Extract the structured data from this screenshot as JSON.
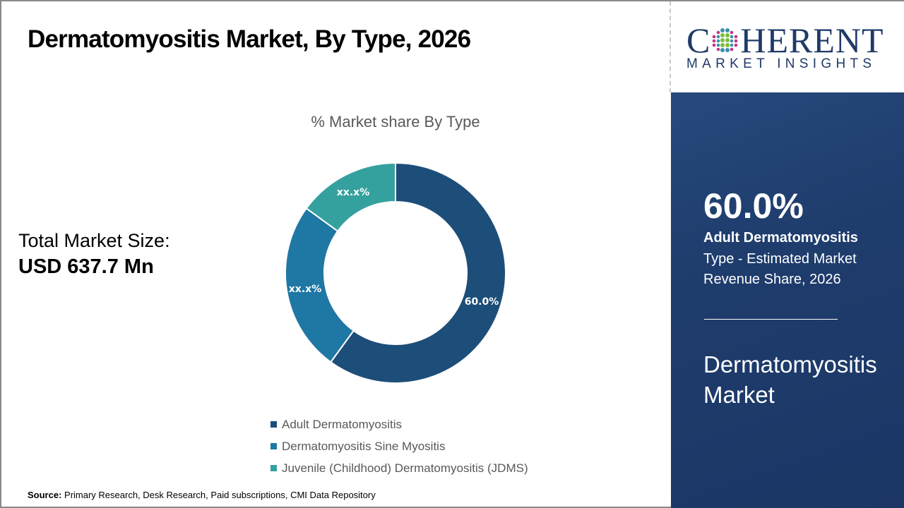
{
  "header": {
    "title": "Dermatomyositis Market, By Type, 2026"
  },
  "logo": {
    "line1_left": "C",
    "line1_right": "HERENT",
    "line2": "MARKET INSIGHTS",
    "brand_color": "#1f3a68"
  },
  "total_market": {
    "label": "Total Market Size:",
    "value": "USD 637.7 Mn"
  },
  "chart_data": {
    "type": "pie",
    "subtype": "donut",
    "title": "% Market share By Type",
    "categories": [
      "Adult Dermatomyositis",
      "Dermatomyositis Sine Myositis",
      "Juvenile (Childhood) Dermatomyositis (JDMS)"
    ],
    "values": [
      60.0,
      25.0,
      15.0
    ],
    "data_labels": [
      "60.0%",
      "xx.x%",
      "xx.x%"
    ],
    "colors": [
      "#1d4e79",
      "#1f77a4",
      "#35a19f"
    ],
    "legend_position": "bottom",
    "start_angle": "top, clockwise",
    "note": "Only Adult Dermatomyositis share (60.0%) is labeled; other shares shown as xx.x% and estimated from segment angles"
  },
  "legend": {
    "items": [
      {
        "label": "Adult Dermatomyositis",
        "color": "#1d4e79"
      },
      {
        "label": "Dermatomyositis Sine Myositis",
        "color": "#1f77a4"
      },
      {
        "label": "Juvenile (Childhood) Dermatomyositis (JDMS)",
        "color": "#35a19f"
      }
    ]
  },
  "highlight_panel": {
    "percent": "60.0%",
    "segment": "Adult Dermatomyositis",
    "description": "Type - Estimated Market Revenue Share, 2026",
    "market_name": "Dermatomyositis Market",
    "background": "#1f3d6e"
  },
  "footer": {
    "source_label": "Source:",
    "source_text": " Primary Research, Desk Research, Paid subscriptions, CMI Data Repository"
  }
}
